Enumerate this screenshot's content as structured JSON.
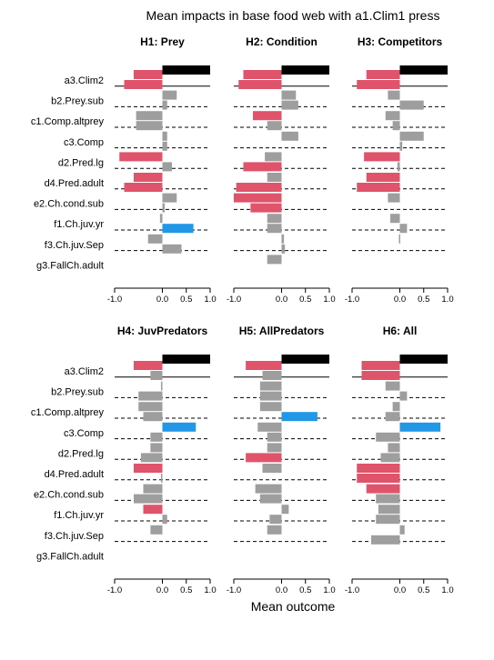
{
  "chart_data": {
    "type": "bar",
    "title": "Mean impacts in base food web with a1.Clim1 press",
    "xlabel": "Mean outcome",
    "xlim": [
      -1.0,
      1.0
    ],
    "xticks": [
      "-1.0",
      "0.0",
      "0.5",
      "1.0"
    ],
    "xtick_values": [
      -1.0,
      0.0,
      0.5,
      1.0
    ],
    "colors": {
      "negative": "#df536b",
      "neutral": "#9e9e9e",
      "positive": "#2297e6",
      "press": "#000000"
    },
    "categories": [
      "a3.Clim2",
      "b2.Prey.sub",
      "c1.Comp.altprey",
      "c3.Comp",
      "d2.Pred.lg",
      "d4.Pred.adult",
      "e2.Ch.cond.sub",
      "f1.Ch.juv.yr",
      "f3.Ch.juv.Sep",
      "g3.FallCh.adult"
    ],
    "press_bar_value": 1.0,
    "panels": [
      {
        "title": "H1: Prey",
        "values": [
          [
            -0.6,
            -0.8
          ],
          [
            0.3,
            0.1
          ],
          [
            -0.55,
            -0.55
          ],
          [
            0.1,
            0.1
          ],
          [
            -0.9,
            0.2
          ],
          [
            -0.6,
            -0.8
          ],
          [
            0.3,
            0.05
          ],
          [
            -0.05,
            0.65
          ],
          [
            -0.3,
            0.4
          ],
          [
            0,
            0
          ]
        ],
        "highlight": [
          [
            1,
            1
          ],
          [
            0,
            0
          ],
          [
            0,
            0
          ],
          [
            0,
            0
          ],
          [
            1,
            0
          ],
          [
            1,
            1
          ],
          [
            0,
            0
          ],
          [
            0,
            2
          ],
          [
            0,
            0
          ],
          [
            0,
            0
          ]
        ]
      },
      {
        "title": "H2: Condition",
        "values": [
          [
            -0.8,
            -0.9
          ],
          [
            0.3,
            0.35
          ],
          [
            -0.6,
            -0.3
          ],
          [
            0.35,
            0.0
          ],
          [
            -0.35,
            -0.8
          ],
          [
            -0.3,
            -0.95
          ],
          [
            -1.0,
            -0.65
          ],
          [
            -0.3,
            -0.3
          ],
          [
            0.05,
            0.07
          ],
          [
            -0.3,
            0
          ]
        ],
        "highlight": [
          [
            1,
            1
          ],
          [
            0,
            0
          ],
          [
            1,
            0
          ],
          [
            0,
            0
          ],
          [
            0,
            1
          ],
          [
            0,
            1
          ],
          [
            1,
            1
          ],
          [
            0,
            0
          ],
          [
            0,
            0
          ],
          [
            0,
            0
          ]
        ]
      },
      {
        "title": "H3: Competitors",
        "values": [
          [
            -0.7,
            -0.9
          ],
          [
            -0.25,
            0.5
          ],
          [
            -0.3,
            -0.15
          ],
          [
            0.5,
            0.05
          ],
          [
            -0.75,
            -0.05
          ],
          [
            -0.7,
            -0.9
          ],
          [
            -0.25,
            0
          ],
          [
            -0.2,
            0.15
          ],
          [
            -0.02,
            0
          ],
          [
            0,
            0
          ]
        ],
        "highlight": [
          [
            1,
            1
          ],
          [
            0,
            0
          ],
          [
            0,
            0
          ],
          [
            0,
            0
          ],
          [
            1,
            0
          ],
          [
            1,
            1
          ],
          [
            0,
            0
          ],
          [
            0,
            0
          ],
          [
            0,
            0
          ],
          [
            0,
            0
          ]
        ]
      },
      {
        "title": "H4: JuvPredators",
        "values": [
          [
            -0.6,
            -0.25
          ],
          [
            -0.03,
            -0.5
          ],
          [
            -0.5,
            -0.4
          ],
          [
            0.7,
            -0.25
          ],
          [
            -0.25,
            -0.45
          ],
          [
            -0.6,
            -0.03
          ],
          [
            -0.4,
            -0.6
          ],
          [
            -0.4,
            0.1
          ],
          [
            -0.25,
            0
          ],
          [
            0,
            0
          ]
        ],
        "highlight": [
          [
            1,
            0
          ],
          [
            0,
            0
          ],
          [
            0,
            0
          ],
          [
            2,
            0
          ],
          [
            0,
            0
          ],
          [
            1,
            0
          ],
          [
            0,
            0
          ],
          [
            1,
            0
          ],
          [
            0,
            0
          ],
          [
            0,
            0
          ]
        ]
      },
      {
        "title": "H5: AllPredators",
        "values": [
          [
            -0.75,
            -0.4
          ],
          [
            -0.45,
            -0.45
          ],
          [
            -0.45,
            0.75
          ],
          [
            -0.5,
            -0.3
          ],
          [
            -0.3,
            -0.75
          ],
          [
            -0.4,
            0
          ],
          [
            -0.55,
            -0.45
          ],
          [
            0.15,
            -0.25
          ],
          [
            -0.3,
            0
          ],
          [
            0,
            0
          ]
        ],
        "highlight": [
          [
            1,
            0
          ],
          [
            0,
            0
          ],
          [
            0,
            2
          ],
          [
            0,
            0
          ],
          [
            0,
            1
          ],
          [
            0,
            0
          ],
          [
            0,
            0
          ],
          [
            0,
            0
          ],
          [
            0,
            0
          ],
          [
            0,
            0
          ]
        ]
      },
      {
        "title": "H6: All",
        "values": [
          [
            -0.8,
            -0.8
          ],
          [
            -0.3,
            0.15
          ],
          [
            -0.15,
            -0.3
          ],
          [
            0.85,
            -0.5
          ],
          [
            -0.25,
            -0.4
          ],
          [
            -0.9,
            -0.9
          ],
          [
            -0.7,
            -0.5
          ],
          [
            -0.45,
            -0.5
          ],
          [
            0.1,
            -0.6
          ],
          [
            0,
            0
          ]
        ],
        "highlight": [
          [
            1,
            1
          ],
          [
            0,
            0
          ],
          [
            0,
            0
          ],
          [
            2,
            0
          ],
          [
            0,
            0
          ],
          [
            1,
            1
          ],
          [
            1,
            0
          ],
          [
            0,
            0
          ],
          [
            0,
            0
          ],
          [
            0,
            0
          ]
        ]
      }
    ]
  }
}
